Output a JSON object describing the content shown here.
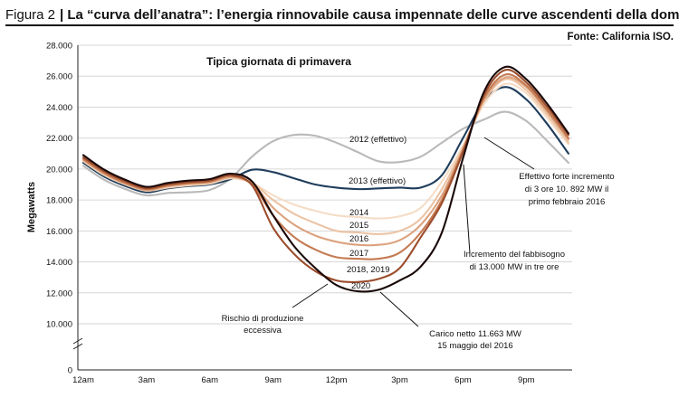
{
  "figure": {
    "label": "Figura 2",
    "title": "| La “curva dell’anatra”: l’energia rinnovabile causa impennate delle curve ascendenti della domanda",
    "source": "Fonte: California ISO."
  },
  "chart_data": {
    "type": "line",
    "title": "Tipica giornata di primavera",
    "ylabel": "Megawatts",
    "xlabel": "",
    "ylim": [
      0,
      28000
    ],
    "y_axis_break": [
      0,
      10000
    ],
    "yticks": [
      0,
      10000,
      12000,
      14000,
      16000,
      18000,
      20000,
      22000,
      24000,
      26000,
      28000
    ],
    "ytick_labels": [
      "0",
      "10.000",
      "12.000",
      "14.000",
      "16.000",
      "18.000",
      "20.000",
      "22.000",
      "24.000",
      "26.000",
      "28.000"
    ],
    "x_hours": [
      0,
      1,
      2,
      3,
      4,
      5,
      6,
      7,
      8,
      9,
      10,
      11,
      12,
      13,
      14,
      15,
      16,
      17,
      18,
      19,
      20,
      21,
      22,
      23
    ],
    "xtick_labels": [
      {
        "hour": 0,
        "label": "12am"
      },
      {
        "hour": 3,
        "label": "3am"
      },
      {
        "hour": 6,
        "label": "6am"
      },
      {
        "hour": 9,
        "label": "9am"
      },
      {
        "hour": 12,
        "label": "12pm"
      },
      {
        "hour": 15,
        "label": "3pm"
      },
      {
        "hour": 18,
        "label": "6pm"
      },
      {
        "hour": 21,
        "label": "9pm"
      }
    ],
    "grid": true,
    "series": [
      {
        "name": "2012 (effettivo)",
        "color": "#b9b9b9",
        "values": [
          20200,
          19300,
          18700,
          18300,
          18450,
          18500,
          18650,
          19400,
          20800,
          21800,
          22200,
          22150,
          21700,
          21100,
          20500,
          20450,
          20800,
          21700,
          22600,
          23200,
          23700,
          23100,
          21800,
          20400
        ]
      },
      {
        "name": "2013 (effettivo)",
        "color": "#1f3d5c",
        "values": [
          20400,
          19500,
          18900,
          18500,
          18750,
          18900,
          19000,
          19350,
          19950,
          19800,
          19400,
          19000,
          18800,
          18700,
          18750,
          18800,
          18800,
          19600,
          22000,
          24400,
          25300,
          24500,
          22900,
          21000
        ]
      },
      {
        "name": "2014",
        "color": "#f5dcc6",
        "values": [
          20500,
          19600,
          19000,
          18600,
          18800,
          18950,
          19050,
          19400,
          19100,
          18300,
          17700,
          17300,
          17000,
          16900,
          16800,
          16950,
          17500,
          19200,
          21500,
          24200,
          25500,
          24900,
          23300,
          21600
        ]
      },
      {
        "name": "2015",
        "color": "#ecc3a3",
        "values": [
          20550,
          19650,
          19050,
          18600,
          18850,
          19000,
          19100,
          19450,
          19100,
          18000,
          17100,
          16500,
          16000,
          15900,
          15800,
          16000,
          16800,
          18700,
          21400,
          24400,
          25800,
          25100,
          23500,
          21700
        ]
      },
      {
        "name": "2016",
        "color": "#dca27e",
        "values": [
          20600,
          19700,
          19050,
          18650,
          18900,
          19050,
          19150,
          19500,
          19050,
          17500,
          16400,
          15700,
          15300,
          15100,
          15100,
          15400,
          16400,
          18300,
          21300,
          24500,
          25900,
          25300,
          23700,
          21900
        ]
      },
      {
        "name": "2017",
        "color": "#c57a52",
        "values": [
          20650,
          19750,
          19100,
          18700,
          18950,
          19100,
          19200,
          19550,
          19000,
          17000,
          15600,
          14800,
          14300,
          14200,
          14200,
          14600,
          15900,
          18000,
          21200,
          24600,
          26100,
          25400,
          23800,
          22000
        ]
      },
      {
        "name": "2018, 2019",
        "color": "#9c4d2c",
        "values": [
          20750,
          19850,
          19200,
          18750,
          19000,
          19150,
          19250,
          19600,
          18950,
          16200,
          14500,
          13400,
          12800,
          12700,
          12900,
          13600,
          15600,
          17800,
          21100,
          24800,
          26400,
          25600,
          24000,
          22200
        ]
      },
      {
        "name": "2020",
        "color": "#1a0808",
        "values": [
          20900,
          19950,
          19300,
          18850,
          19100,
          19250,
          19350,
          19700,
          19200,
          17000,
          15000,
          13600,
          12500,
          12100,
          12200,
          12800,
          13700,
          15900,
          20700,
          25000,
          26600,
          25800,
          24200,
          22300
        ]
      }
    ],
    "annotations": {
      "rischio": [
        "Rischio di produzione",
        "eccessiva"
      ],
      "carico": [
        "Carico netto 11.663 MW",
        "15 maggio del 2016"
      ],
      "fabbisogno": [
        "Incremento del fabbisogno",
        "di 13.000 MW in tre ore"
      ],
      "effettivo": [
        "Effettivo forte incremento",
        "di 3 ore 10. 892 MW il",
        "primo febbraio 2016"
      ]
    }
  }
}
